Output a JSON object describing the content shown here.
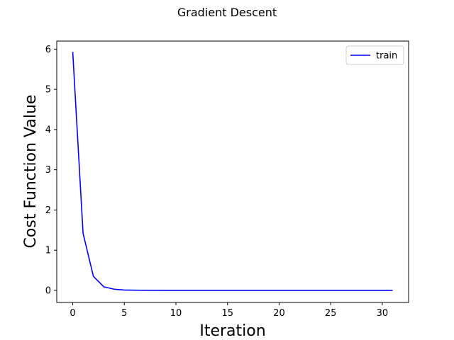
{
  "chart_data": {
    "type": "line",
    "title": "Gradient Descent",
    "xlabel": "Iteration",
    "ylabel": "Cost Function Value",
    "xlim": [
      -1.55,
      32.55
    ],
    "ylim": [
      -0.3,
      6.2
    ],
    "xticks": [
      0,
      5,
      10,
      15,
      20,
      25,
      30
    ],
    "xtick_labels": [
      "0",
      "5",
      "10",
      "15",
      "20",
      "25",
      "30"
    ],
    "yticks": [
      0,
      1,
      2,
      3,
      4,
      5,
      6
    ],
    "ytick_labels": [
      "0",
      "1",
      "2",
      "3",
      "4",
      "5",
      "6"
    ],
    "grid": false,
    "legend_position": "top-right",
    "series": [
      {
        "name": "train",
        "color": "#0000ff",
        "x": [
          0,
          1,
          2,
          3,
          4,
          5,
          6,
          7,
          8,
          9,
          10,
          11,
          12,
          13,
          14,
          15,
          16,
          17,
          18,
          19,
          20,
          21,
          22,
          23,
          24,
          25,
          26,
          27,
          28,
          29,
          30,
          31
        ],
        "values": [
          5.93,
          1.42,
          0.35,
          0.09,
          0.03,
          0.01,
          0.005,
          0.003,
          0.002,
          0.001,
          0.001,
          0.001,
          0,
          0,
          0,
          0,
          0,
          0,
          0,
          0,
          0,
          0,
          0,
          0,
          0,
          0,
          0,
          0,
          0,
          0,
          0,
          0
        ]
      }
    ]
  }
}
